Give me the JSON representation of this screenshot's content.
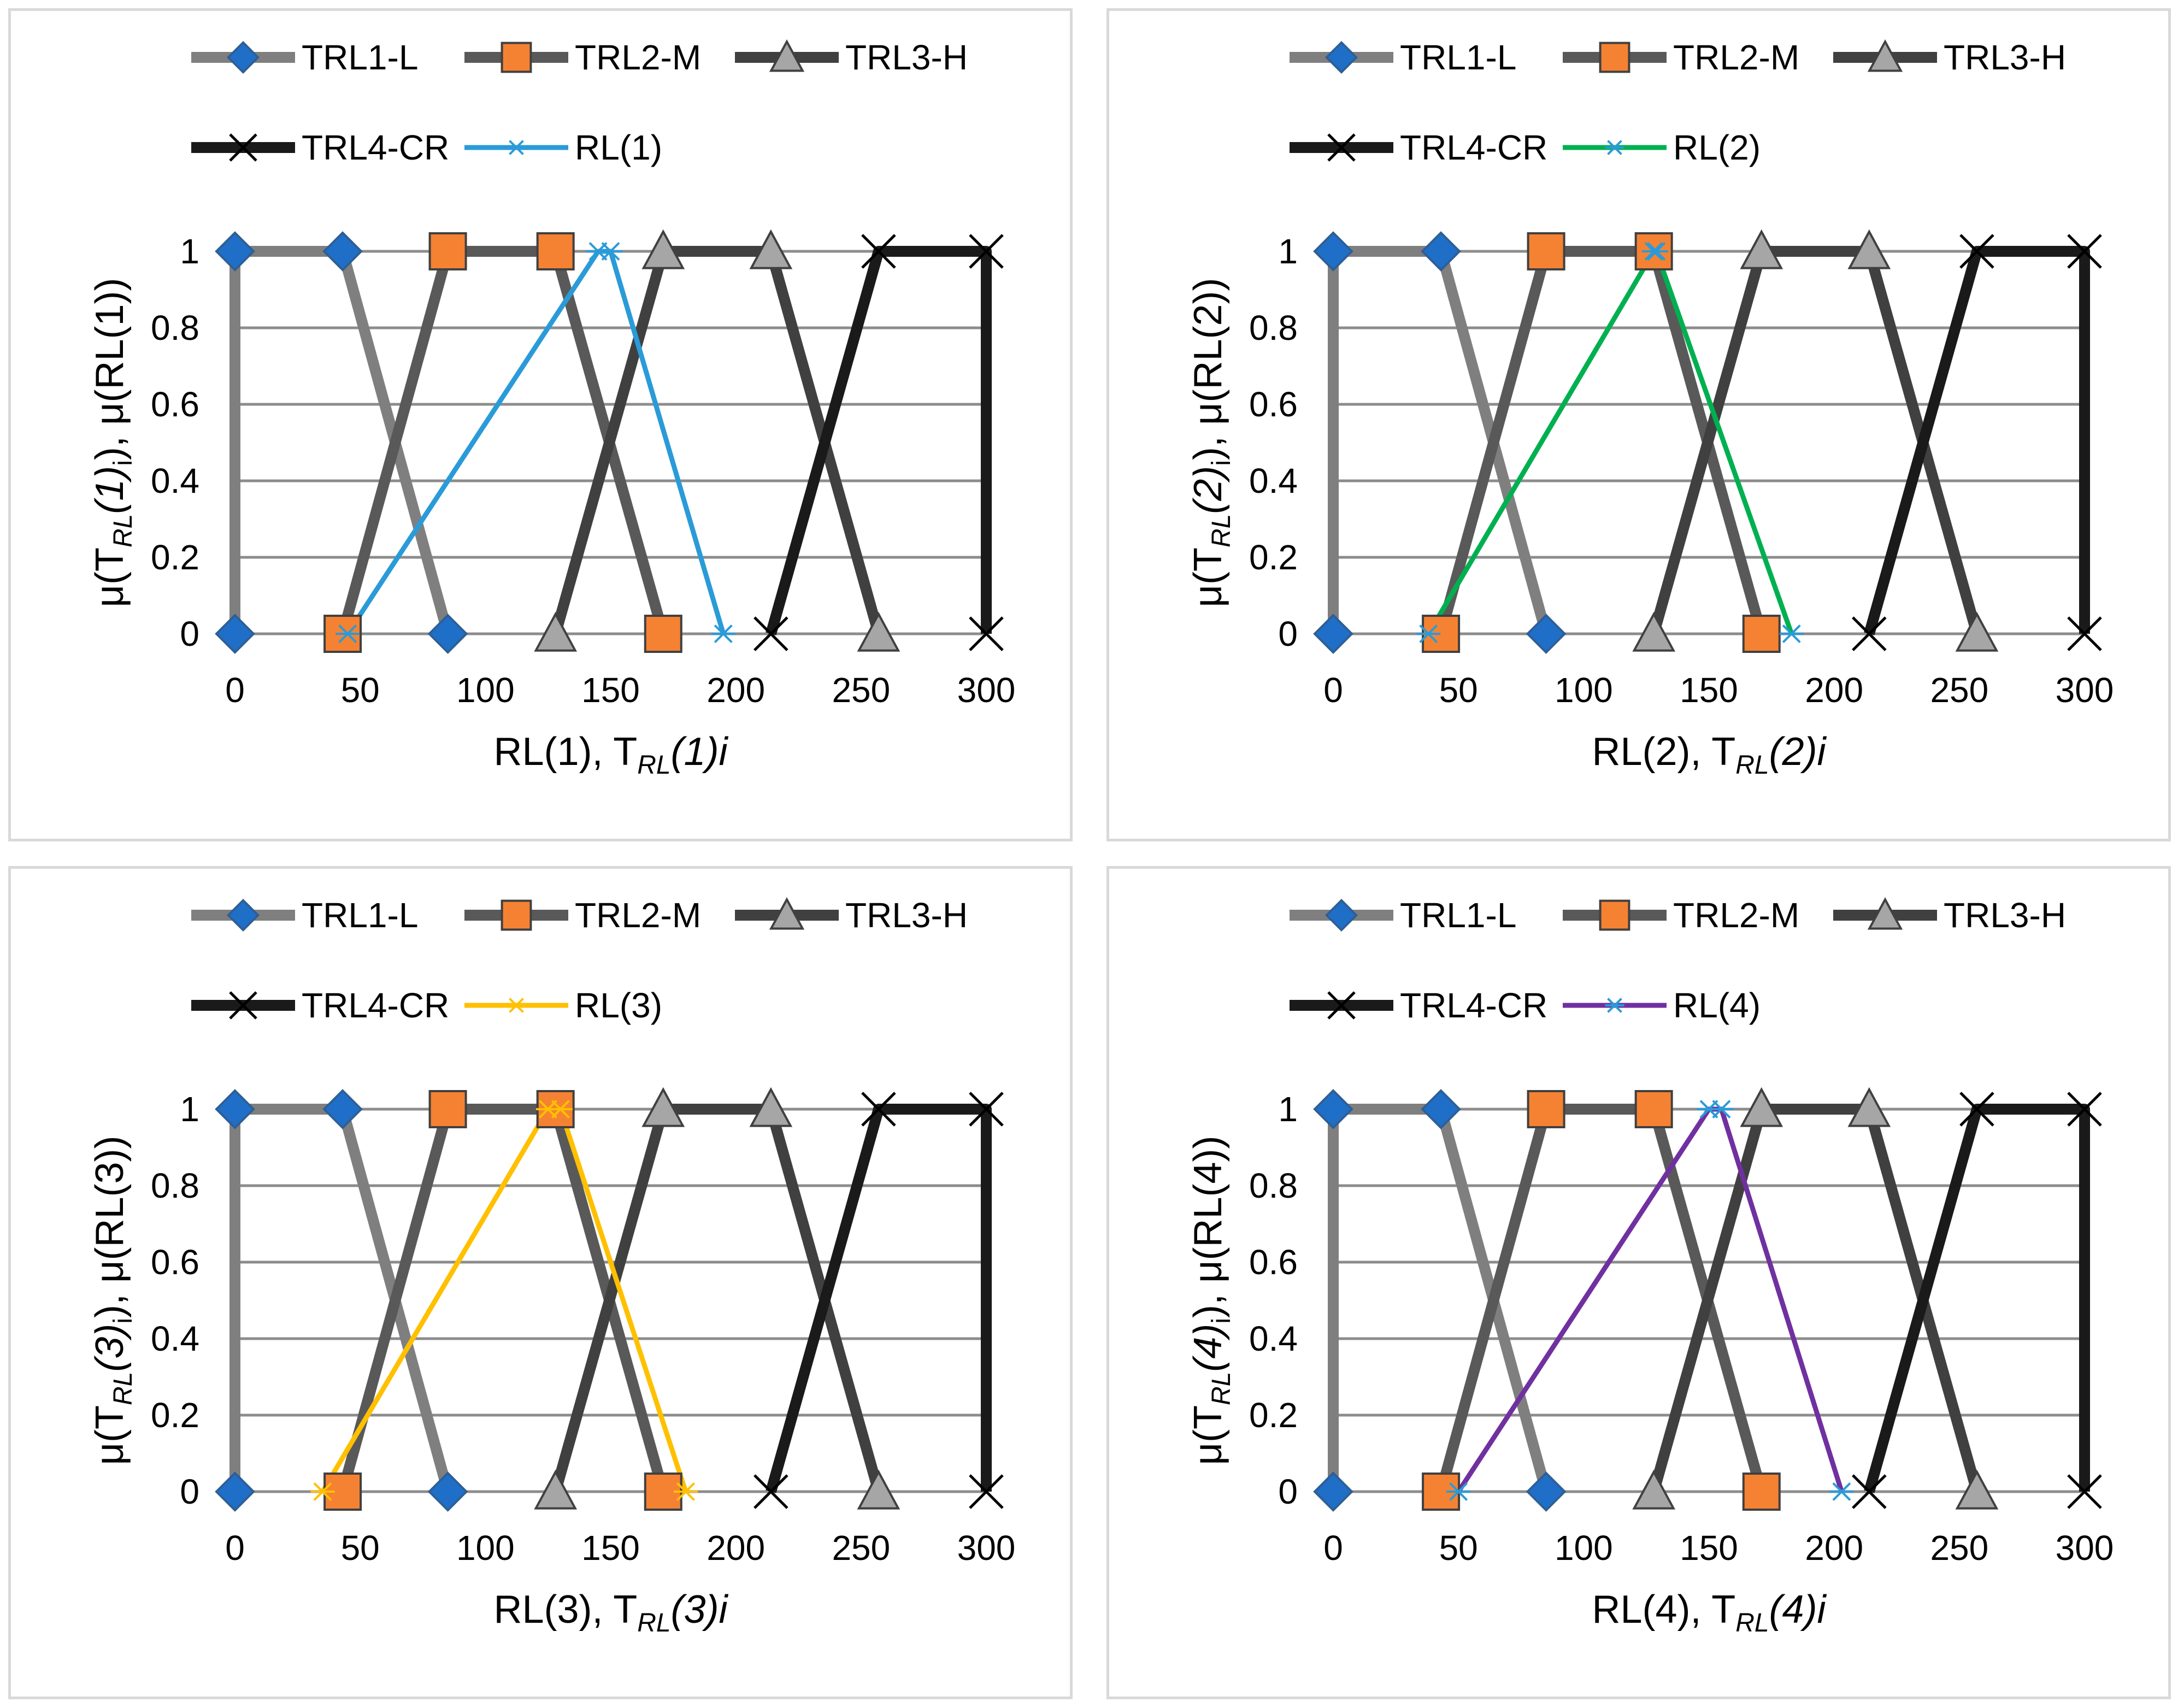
{
  "colors": {
    "trl1": "#7f7f7f",
    "trl2": "#595959",
    "trl3": "#404040",
    "trl4": "#1a1a1a",
    "diamond": "#1f6fc8",
    "square": "#f58232",
    "triangle": "#a6a6a6",
    "grid": "#8c8c8c"
  },
  "charts": [
    {
      "legend": [
        "TRL1-L",
        "TRL2-M",
        "TRL3-H",
        "TRL4-CR",
        "RL(1)"
      ],
      "rl": {
        "x": [
          45,
          145,
          150,
          195
        ],
        "y": [
          0,
          1,
          1,
          0
        ],
        "color": "#2a9bd8",
        "marker": "#2a9bd8"
      },
      "xlabel": {
        "main": "RL(1), T",
        "sub": "RL",
        "tail": "(1)i"
      },
      "ylabel": {
        "a": "μ(T",
        "sub": "RL",
        "b": "(1)",
        "isub": "i",
        "c": "), μ(RL(1))"
      }
    },
    {
      "legend": [
        "TRL1-L",
        "TRL2-M",
        "TRL3-H",
        "TRL4-CR",
        "RL(2)"
      ],
      "rl": {
        "x": [
          38,
          128,
          129,
          183
        ],
        "y": [
          0,
          1,
          1,
          0
        ],
        "color": "#00b050",
        "marker": "#2a9bd8"
      },
      "xlabel": {
        "main": "RL(2), T",
        "sub": "RL",
        "tail": "(2)i"
      },
      "ylabel": {
        "a": "μ(T",
        "sub": "RL",
        "b": "(2)",
        "isub": "i",
        "c": "), μ(RL(2))"
      }
    },
    {
      "legend": [
        "TRL1-L",
        "TRL2-M",
        "TRL3-H",
        "TRL4-CR",
        "RL(3)"
      ],
      "rl": {
        "x": [
          35,
          125,
          130,
          180
        ],
        "y": [
          0,
          1,
          1,
          0
        ],
        "color": "#ffc000",
        "marker": "#ffc000"
      },
      "xlabel": {
        "main": "RL(3), T",
        "sub": "RL",
        "tail": "(3)i"
      },
      "ylabel": {
        "a": "μ(T",
        "sub": "RL",
        "b": "(3)",
        "isub": "i",
        "c": "), μ(RL(3))"
      }
    },
    {
      "legend": [
        "TRL1-L",
        "TRL2-M",
        "TRL3-H",
        "TRL4-CR",
        "RL(4)"
      ],
      "rl": {
        "x": [
          50,
          150,
          155,
          203
        ],
        "y": [
          0,
          1,
          1,
          0
        ],
        "color": "#7030a0",
        "marker": "#2a9bd8"
      },
      "xlabel": {
        "main": "RL(4), T",
        "sub": "RL",
        "tail": "(4)i"
      },
      "ylabel": {
        "a": "μ(T",
        "sub": "RL",
        "b": "(4)",
        "isub": "i",
        "c": "), μ(RL(4))"
      }
    }
  ],
  "chart_data": {
    "type": "line",
    "xlim": [
      0,
      300
    ],
    "ylim": [
      0,
      1
    ],
    "xticks": [
      "0",
      "50",
      "100",
      "150",
      "200",
      "250",
      "300"
    ],
    "yticks": [
      "0",
      "0.2",
      "0.4",
      "0.6",
      "0.8",
      "1"
    ],
    "series": [
      {
        "name": "TRL1-L",
        "x": [
          0,
          0,
          43,
          85
        ],
        "y": [
          0,
          1,
          1,
          0
        ],
        "marker": "diamond"
      },
      {
        "name": "TRL2-M",
        "x": [
          43,
          85,
          128,
          171
        ],
        "y": [
          0,
          1,
          1,
          0
        ],
        "marker": "square"
      },
      {
        "name": "TRL3-H",
        "x": [
          128,
          171,
          214,
          257
        ],
        "y": [
          0,
          1,
          1,
          0
        ],
        "marker": "triangle"
      },
      {
        "name": "TRL4-CR",
        "x": [
          214,
          257,
          300,
          300
        ],
        "y": [
          0,
          1,
          1,
          0
        ],
        "marker": "x"
      }
    ]
  }
}
